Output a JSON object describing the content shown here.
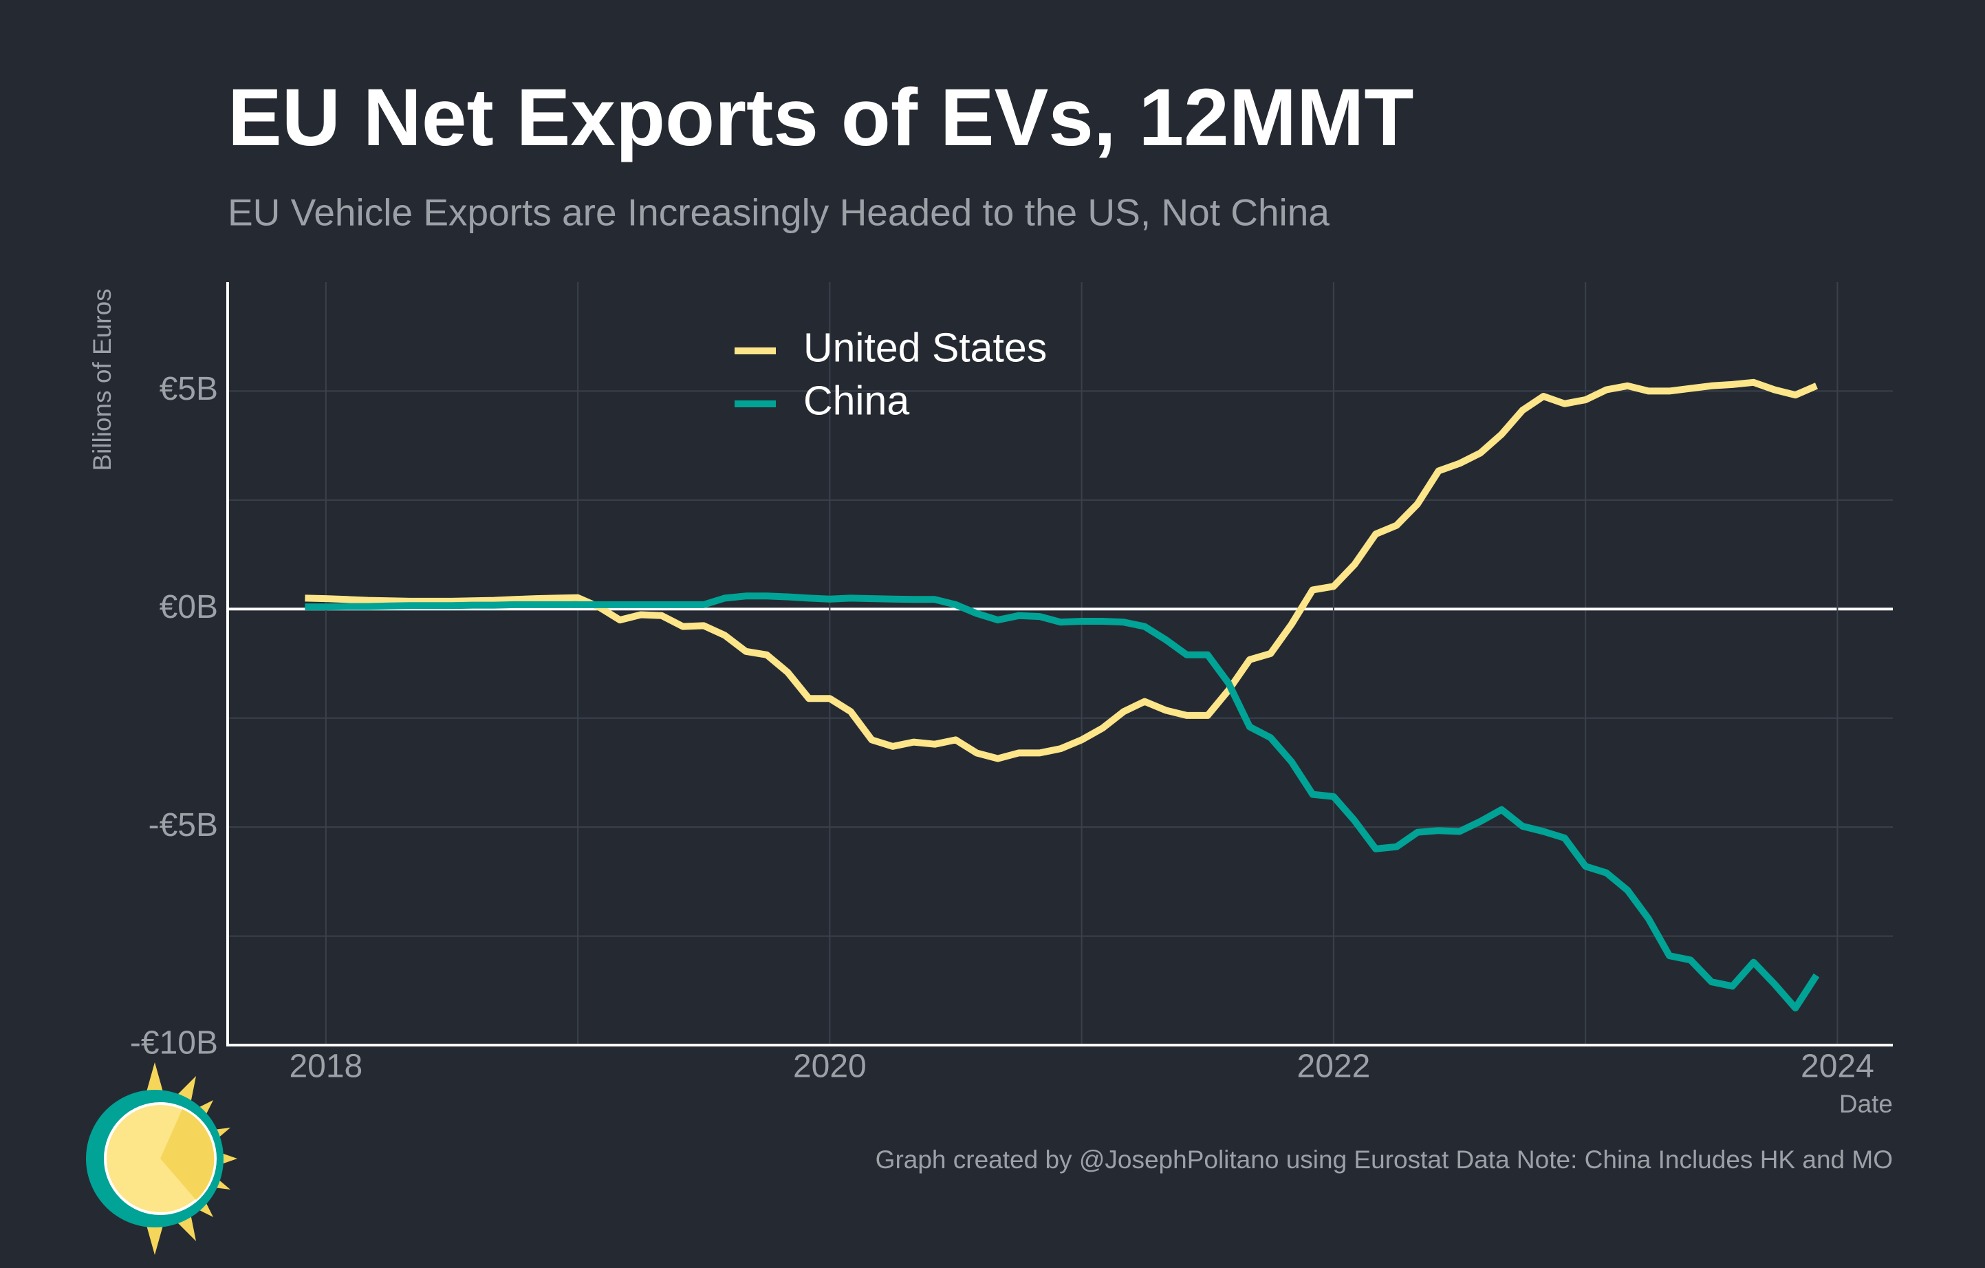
{
  "chart_data": {
    "type": "line",
    "title": "EU Net Exports of EVs, 12MMT",
    "subtitle": "EU Vehicle Exports are Increasingly Headed to the US, Not China",
    "x_label": "Date",
    "y_label": "Billions of Euros",
    "caption": "Graph created by @JosephPolitano using Eurostat Data  Note: China Includes HK and MO",
    "x": [
      2017.917,
      2018,
      2018.083,
      2018.167,
      2018.25,
      2018.333,
      2018.417,
      2018.5,
      2018.583,
      2018.667,
      2018.75,
      2018.833,
      2018.917,
      2019,
      2019.083,
      2019.167,
      2019.25,
      2019.333,
      2019.417,
      2019.5,
      2019.583,
      2019.667,
      2019.75,
      2019.833,
      2019.917,
      2020,
      2020.083,
      2020.167,
      2020.25,
      2020.333,
      2020.417,
      2020.5,
      2020.583,
      2020.667,
      2020.75,
      2020.833,
      2020.917,
      2021,
      2021.083,
      2021.167,
      2021.25,
      2021.333,
      2021.417,
      2021.5,
      2021.583,
      2021.667,
      2021.75,
      2021.833,
      2021.917,
      2022,
      2022.083,
      2022.167,
      2022.25,
      2022.333,
      2022.417,
      2022.5,
      2022.583,
      2022.667,
      2022.75,
      2022.833,
      2022.917,
      2023,
      2023.083,
      2023.167,
      2023.25,
      2023.333,
      2023.417,
      2023.5,
      2023.583,
      2023.667,
      2023.75,
      2023.833,
      2023.917
    ],
    "series": [
      {
        "name": "United States",
        "color": "#fde58a",
        "values": [
          0.25,
          0.24,
          0.22,
          0.2,
          0.19,
          0.18,
          0.18,
          0.18,
          0.19,
          0.2,
          0.22,
          0.24,
          0.25,
          0.26,
          0.05,
          -0.25,
          -0.13,
          -0.15,
          -0.4,
          -0.38,
          -0.6,
          -0.97,
          -1.05,
          -1.45,
          -2.05,
          -2.05,
          -2.35,
          -3.0,
          -3.15,
          -3.05,
          -3.1,
          -3.0,
          -3.3,
          -3.43,
          -3.3,
          -3.3,
          -3.2,
          -3.0,
          -2.73,
          -2.35,
          -2.12,
          -2.32,
          -2.44,
          -2.44,
          -1.86,
          -1.16,
          -1.02,
          -0.35,
          0.44,
          0.52,
          1.02,
          1.72,
          1.92,
          2.41,
          3.17,
          3.34,
          3.58,
          4.01,
          4.56,
          4.88,
          4.71,
          4.8,
          5.03,
          5.12,
          5.0,
          5.0,
          5.06,
          5.12,
          5.15,
          5.2,
          5.03,
          4.91,
          5.12
        ]
      },
      {
        "name": "China",
        "color": "#00a396",
        "values": [
          0.05,
          0.05,
          0.06,
          0.06,
          0.07,
          0.08,
          0.08,
          0.08,
          0.09,
          0.09,
          0.1,
          0.1,
          0.1,
          0.1,
          0.1,
          0.1,
          0.1,
          0.1,
          0.1,
          0.1,
          0.25,
          0.3,
          0.3,
          0.28,
          0.25,
          0.23,
          0.25,
          0.24,
          0.23,
          0.22,
          0.22,
          0.1,
          -0.1,
          -0.25,
          -0.15,
          -0.17,
          -0.3,
          -0.28,
          -0.28,
          -0.3,
          -0.4,
          -0.7,
          -1.05,
          -1.05,
          -1.7,
          -2.7,
          -2.95,
          -3.5,
          -4.25,
          -4.3,
          -4.85,
          -5.5,
          -5.45,
          -5.12,
          -5.08,
          -5.1,
          -4.87,
          -4.6,
          -4.98,
          -5.1,
          -5.25,
          -5.9,
          -6.05,
          -6.45,
          -7.1,
          -7.95,
          -8.05,
          -8.55,
          -8.65,
          -8.1,
          -8.6,
          -9.15,
          -8.4
        ]
      }
    ],
    "xlim": [
      2017.61,
      2024.22
    ],
    "ylim": [
      -10,
      7.5
    ],
    "xticks": [
      2018,
      2020,
      2022,
      2024
    ],
    "minor_xticks": [
      2019,
      2021,
      2023
    ],
    "yticks": [
      {
        "value": 5,
        "label": "€5B"
      },
      {
        "value": 0,
        "label": "€0B"
      },
      {
        "value": -5,
        "label": "-€5B"
      },
      {
        "value": -10,
        "label": "-€10B"
      }
    ],
    "minor_yticks": [
      -7.5,
      -2.5,
      2.5
    ],
    "grid": true
  }
}
